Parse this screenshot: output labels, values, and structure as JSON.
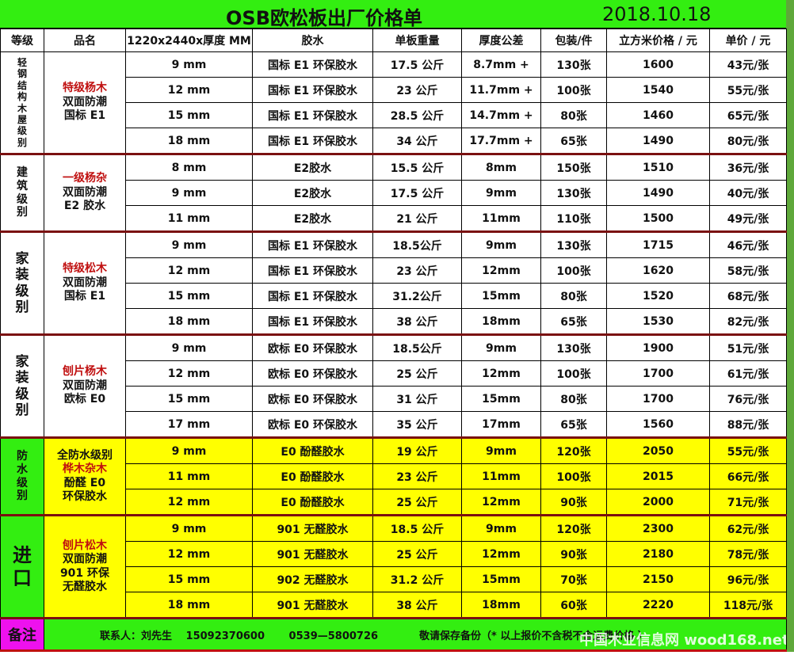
{
  "title": "OSB欧松板出厂价格单",
  "date": "2018.10.18",
  "headers": [
    "等级",
    "品名",
    "1220x2440x厚度 MM",
    "胶水",
    "单板重量",
    "厚度公差",
    "包装/件",
    "立方米价格 / 元",
    "单价 / 元"
  ],
  "sections": [
    {
      "grade": "轻钢结构木屋级别",
      "grade_style": "sml",
      "name": [
        {
          "t": "特级杨木",
          "red": true
        },
        {
          "t": "双面防潮"
        },
        {
          "t": "国标 E1"
        }
      ],
      "yellow": false,
      "rows": [
        [
          "9 mm",
          "国标 E1 环保胶水",
          "17.5 公斤",
          "8.7mm +",
          "130张",
          "1600",
          "43元/张"
        ],
        [
          "12 mm",
          "国标 E1 环保胶水",
          "23 公斤",
          "11.7mm +",
          "100张",
          "1540",
          "55元/张"
        ],
        [
          "15 mm",
          "国标 E1 环保胶水",
          "28.5 公斤",
          "14.7mm +",
          "80张",
          "1460",
          "65元/张"
        ],
        [
          "18 mm",
          "国标 E1 环保胶水",
          "34 公斤",
          "17.7mm +",
          "65张",
          "1490",
          "80元/张"
        ]
      ]
    },
    {
      "grade": "建筑级别",
      "grade_style": "",
      "name": [
        {
          "t": "一级杨杂",
          "red": true
        },
        {
          "t": "双面防潮"
        },
        {
          "t": "E2 胶水"
        }
      ],
      "yellow": false,
      "rows": [
        [
          "8 mm",
          "E2胶水",
          "15.5 公斤",
          "8mm",
          "150张",
          "1510",
          "36元/张"
        ],
        [
          "9 mm",
          "E2胶水",
          "17.5 公斤",
          "9mm",
          "130张",
          "1490",
          "40元/张"
        ],
        [
          "11 mm",
          "E2胶水",
          "21 公斤",
          "11mm",
          "110张",
          "1500",
          "49元/张"
        ]
      ]
    },
    {
      "grade": "家装级别",
      "grade_style": "mid",
      "name": [
        {
          "t": "特级松木",
          "red": true
        },
        {
          "t": "双面防潮"
        },
        {
          "t": "国标 E1"
        }
      ],
      "yellow": false,
      "rows": [
        [
          "9 mm",
          "国标 E1 环保胶水",
          "18.5公斤",
          "9mm",
          "130张",
          "1715",
          "46元/张"
        ],
        [
          "12 mm",
          "国标 E1 环保胶水",
          "23 公斤",
          "12mm",
          "100张",
          "1620",
          "58元/张"
        ],
        [
          "15 mm",
          "国标 E1 环保胶水",
          "31.2公斤",
          "15mm",
          "80张",
          "1520",
          "68元/张"
        ],
        [
          "18 mm",
          "国标 E1 环保胶水",
          "38 公斤",
          "18mm",
          "65张",
          "1530",
          "82元/张"
        ]
      ]
    },
    {
      "grade": "家装级别",
      "grade_style": "mid",
      "name": [
        {
          "t": "刨片杨木",
          "red": true
        },
        {
          "t": "双面防潮"
        },
        {
          "t": "欧标 E0"
        }
      ],
      "yellow": false,
      "rows": [
        [
          "9 mm",
          "欧标 E0 环保胶水",
          "18.5公斤",
          "9mm",
          "130张",
          "1900",
          "51元/张"
        ],
        [
          "12 mm",
          "欧标 E0 环保胶水",
          "25 公斤",
          "12mm",
          "100张",
          "1700",
          "61元/张"
        ],
        [
          "15 mm",
          "欧标 E0 环保胶水",
          "31 公斤",
          "15mm",
          "80张",
          "1700",
          "76元/张"
        ],
        [
          "17 mm",
          "欧标 E0 环保胶水",
          "35 公斤",
          "17mm",
          "65张",
          "1560",
          "88元/张"
        ]
      ]
    },
    {
      "grade": "防水级别",
      "grade_style": "",
      "name": [
        {
          "t": "全防水级别"
        },
        {
          "t": "桦木杂木",
          "red": true
        },
        {
          "t": "酚醛 E0"
        },
        {
          "t": "环保胶水"
        }
      ],
      "yellow": true,
      "rows": [
        [
          "9 mm",
          "E0 酚醛胶水",
          "19 公斤",
          "9mm",
          "120张",
          "2050",
          "55元/张"
        ],
        [
          "11 mm",
          "E0 酚醛胶水",
          "23 公斤",
          "11mm",
          "100张",
          "2015",
          "66元/张"
        ],
        [
          "12 mm",
          "E0 酚醛胶水",
          "25 公斤",
          "12mm",
          "90张",
          "2000",
          "71元/张"
        ]
      ]
    },
    {
      "grade": "进口",
      "grade_style": "big",
      "name": [
        {
          "t": "刨片松木",
          "red": true
        },
        {
          "t": "双面防潮"
        },
        {
          "t": "901 环保"
        },
        {
          "t": "无醛胶水"
        }
      ],
      "yellow": true,
      "rows": [
        [
          "9 mm",
          "901 无醛胶水",
          "18.5 公斤",
          "9mm",
          "120张",
          "2300",
          "62元/张"
        ],
        [
          "12 mm",
          "901 无醛胶水",
          "25 公斤",
          "12mm",
          "90张",
          "2180",
          "78元/张"
        ],
        [
          "15 mm",
          "902 无醛胶水",
          "31.2 公斤",
          "15mm",
          "70张",
          "2150",
          "96元/张"
        ],
        [
          "18 mm",
          "901 无醛胶水",
          "38 公斤",
          "18mm",
          "60张",
          "2220",
          "118元/张"
        ]
      ]
    }
  ],
  "footer": {
    "label": "备注",
    "contact": "联系人：刘先生　 15092370600　　 0539—5800726　　　　敬请保存备份（* 以上报价不含税不含运费价格 ）",
    "watermark": "中国木业信息网 wood168.net"
  },
  "colors": {
    "header_green": "#33ee11",
    "yellow": "#ffff00",
    "note_magenta": "#ee11ee",
    "red_text": "#c01010"
  }
}
